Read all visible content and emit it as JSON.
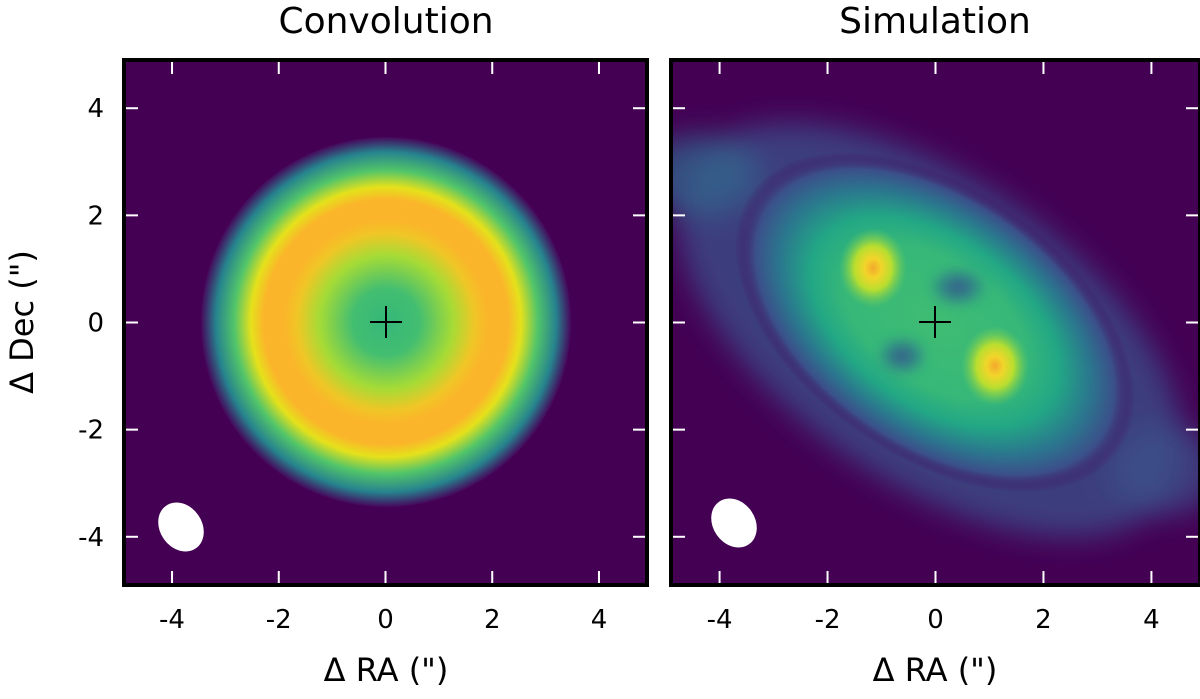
{
  "chart_data": [
    {
      "type": "heatmap",
      "title": "Convolution",
      "xlabel": "Δ RA (\")",
      "ylabel": "Δ Dec (\")",
      "xlim": [
        -4.9,
        4.9
      ],
      "ylim": [
        -4.9,
        4.9
      ],
      "xticks": [
        -4,
        -2,
        0,
        2,
        4
      ],
      "yticks": [
        -4,
        -2,
        0,
        2,
        4
      ],
      "xtick_labels": [
        "-4",
        "-2",
        "0",
        "2",
        "4"
      ],
      "ytick_labels": [
        "-4",
        "-2",
        "0",
        "2",
        "4"
      ],
      "colormap": "viridis",
      "grid": false,
      "center_marker": {
        "x": 0,
        "y": 0
      },
      "beam": {
        "x": -3.8,
        "y": -3.8,
        "major": 1.0,
        "minor": 0.8,
        "pa_deg": 35
      },
      "features": [
        {
          "kind": "ring",
          "x": 0,
          "y": 0,
          "radius": 1.45,
          "peak": 0.82
        },
        {
          "kind": "halo",
          "x": 0,
          "y": 0,
          "extent": 3.3
        }
      ]
    },
    {
      "type": "heatmap",
      "title": "Simulation",
      "xlabel": "Δ RA (\")",
      "ylabel": "",
      "xlim": [
        -4.9,
        4.9
      ],
      "ylim": [
        -4.9,
        4.9
      ],
      "xticks": [
        -4,
        -2,
        0,
        2,
        4
      ],
      "yticks": [
        -4,
        -2,
        0,
        2,
        4
      ],
      "xtick_labels": [
        "-4",
        "-2",
        "0",
        "2",
        "4"
      ],
      "ytick_labels": [],
      "colormap": "viridis",
      "grid": false,
      "center_marker": {
        "x": 0,
        "y": 0
      },
      "beam": {
        "x": -3.8,
        "y": -3.8,
        "major": 1.0,
        "minor": 0.8,
        "pa_deg": 35
      },
      "features": [
        {
          "kind": "elongated-disk",
          "x": 0,
          "y": 0,
          "pa_deg": -35,
          "extent": 4.8
        },
        {
          "kind": "peak",
          "x": -1.2,
          "y": 1.0,
          "peak": 0.95
        },
        {
          "kind": "peak",
          "x": 1.15,
          "y": -0.8,
          "peak": 0.95
        },
        {
          "kind": "hole",
          "x": -0.55,
          "y": -0.65
        },
        {
          "kind": "hole",
          "x": 0.55,
          "y": 0.65
        }
      ]
    }
  ]
}
